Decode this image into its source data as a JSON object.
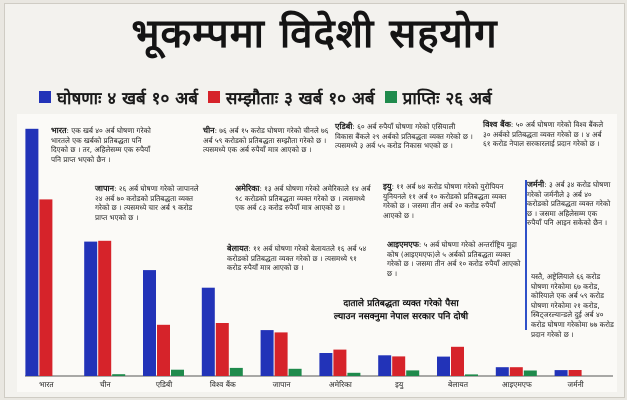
{
  "headline": "भूकम्पमा विदेशी सहयोग",
  "legend": {
    "items": [
      {
        "label": "घोषणाः ४ खर्ब १० अर्ब",
        "color": "#2233b8"
      },
      {
        "label": "सम्झौताः ३ खर्ब १० अर्ब",
        "color": "#d6232a"
      },
      {
        "label": "प्राप्तिः २६ अर्ब",
        "color": "#1f8a4c"
      }
    ]
  },
  "notes": [
    {
      "country": "भारत",
      "text": ": एक खर्ब ४० अर्ब घोषणा गरेको भारतले एक खर्बको प्रतिबद्धता पनि दिएको छ । तर, अहिलेसम्म एक रुपैयाँ पनि प्राप्त भएको छैन ।"
    },
    {
      "country": "चीन",
      "text": ": ७६ अर्ब १५ करोड घोषणा गरेको चीनले ७६ अर्ब ५९ करोडको प्रतिबद्धता सम्झौता गरेको छ । त्यसमध्ये एक अर्ब रुपैयाँ मात्र आएको छ ।"
    },
    {
      "country": "एडिबी",
      "text": ": ६० अर्ब रुपैयाँ घोषणा गरेको एसियाली विकास बैंकले २९ अर्बको प्रतिबद्धता व्यक्त गरेको छ । त्यसमध्ये ३ अर्ब ५५ करोड निकास भएको छ ।"
    },
    {
      "country": "विश्व बैंक",
      "text": ": ५० अर्ब घोषणा गरेको विश्व बैंकले ३० अर्बको प्रतिबद्धता व्यक्त गरेको छ । ४ अर्ब ६१ करोड नेपाल सरकारलाई प्रदान गरेको छ ।"
    },
    {
      "country": "जापान",
      "text": ": २६ अर्ब घोषणा गरेको जापानले २४ अर्ब ७० करोडको प्रतिबद्धता व्यक्त गरेको छ । त्यसमध्ये चार अर्ब ९ करोड प्राप्त भएको छ ।"
    },
    {
      "country": "अमेरिका",
      "text": ": १३ अर्ब घोषणा गरेको अमेरिकाले १४ अर्ब ९८ करोडको प्रतिबद्धता व्यक्त गरेको छ । त्यसमध्ये एक अर्ब ८३ करोड रुपैयाँ मात्र आएको छ ।"
    },
    {
      "country": "इयु",
      "text": ": ११ अर्ब ७४ करोड घोषणा गरेको युरोपियन युनियनले ११ अर्ब १० करोडको प्रतिबद्धता व्यक्त गरेको छ । जसमा तीन अर्ब २० करोड रुपैयाँ आएको छ ।"
    },
    {
      "country": "जर्मनी",
      "text": ": ३ अर्ब ३४ करोड घोषणा गरेको जर्मनीले ३ अर्ब ४० करोडको प्रतिबद्धता व्यक्त गरेको छ । जसमा अहिलेसम्म एक रुपैयाँ पनि आइन सकेको छैन ।"
    },
    {
      "country": "बेलायत",
      "text": ": ११ अर्ब घोषणा गरेको बेलायतले १६ अर्ब ५४ करोडको प्रतिबद्धता व्यक्त गरेको छ । त्यसमध्ये ९१ करोड रुपैयाँ मात्र आएको छ ।"
    },
    {
      "country": "आइएमएफ",
      "text": ": ५ अर्ब घोषणा गरेको अन्तर्राष्ट्रिय मुद्रा कोष (आइएमएफ)ले ५ अर्बको प्रतिबद्धता व्यक्त गरेको छ । जसमा तीन अर्ब १० करोड रुपैयाँ आएको छ ।"
    },
    {
      "country": "",
      "text": "यस्तै, अष्ट्रेलियाले ६६ करोड घोषणा गरेकोमा ६७ करोड, कोरियाले एक अर्ब ५९ करोड घोषणा गरेकोमा २१ करोड, स्विट्जरल्यान्डले दुई अर्ब ४० करोड घोषणा गरेकोमा ७७ करोड प्रदान गरेको छ ।"
    }
  ],
  "conclusion": {
    "line1": "दाताले प्रतिबद्धता व्यक्त गरेको पैसा",
    "line2": "ल्याउन नसक्नुमा नेपाल सरकार पनि दोषी"
  },
  "chart_data": {
    "type": "bar",
    "title": "भूकम्पमा विदेशी सहयोग",
    "categories": [
      "भारत",
      "चीन",
      "एडिबी",
      "विश्व बैंक",
      "जापान",
      "अमेरिका",
      "इयु",
      "बेलायत",
      "आइएमएफ",
      "जर्मनी"
    ],
    "series": [
      {
        "name": "घोषणा",
        "color": "#2233b8",
        "values": [
          140,
          76.15,
          60,
          50,
          26,
          13,
          11.74,
          11,
          5,
          3.34
        ]
      },
      {
        "name": "सम्झौता",
        "color": "#d6232a",
        "values": [
          100,
          76.59,
          29,
          30,
          24.7,
          14.98,
          11.1,
          16.54,
          5,
          3.4
        ]
      },
      {
        "name": "प्राप्ति",
        "color": "#1f8a4c",
        "values": [
          0,
          1,
          3.55,
          4.61,
          4.09,
          1.83,
          3.2,
          0.91,
          3.1,
          0
        ]
      }
    ],
    "ylim": [
      0,
      145
    ],
    "grid": false,
    "legend_position": "top"
  }
}
